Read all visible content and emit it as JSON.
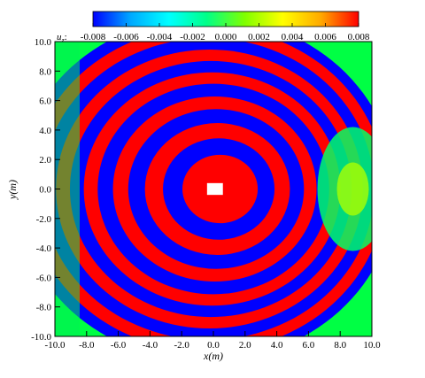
{
  "chart_data": {
    "type": "heatmap",
    "title": "",
    "colorbar": {
      "label_symbol": "u",
      "label_sub": "z",
      "label_suffix": ":",
      "ticks": [
        "-0.008",
        "-0.006",
        "-0.004",
        "-0.002",
        "0.000",
        "0.002",
        "0.004",
        "0.006",
        "0.008"
      ],
      "range": [
        -0.008,
        0.008
      ],
      "colormap": [
        "#0000ff",
        "#00aaff",
        "#00ffff",
        "#00ff88",
        "#80ff00",
        "#ffff00",
        "#ffaa00",
        "#ff0000"
      ]
    },
    "xlabel": "x(m)",
    "ylabel": "y(m)",
    "xlim": [
      -10,
      10
    ],
    "ylim": [
      -10,
      10
    ],
    "xticks": [
      "-10.0",
      "-8.0",
      "-6.0",
      "-4.0",
      "-2.0",
      "0.0",
      "2.0",
      "4.0",
      "6.0",
      "8.0",
      "10.0"
    ],
    "yticks": [
      "10.0",
      "8.0",
      "6.0",
      "4.0",
      "2.0",
      "0.0",
      "-2.0",
      "-4.0",
      "-6.0",
      "-8.0",
      "-10.0"
    ],
    "obstacle": {
      "x": [
        -0.4,
        0.6
      ],
      "y": [
        -0.4,
        0.4
      ],
      "color": "#ffffff"
    },
    "field_description_colors": {
      "positive": "#ff0000",
      "negative": "#0000ff",
      "neutral": "#00ff00"
    }
  }
}
